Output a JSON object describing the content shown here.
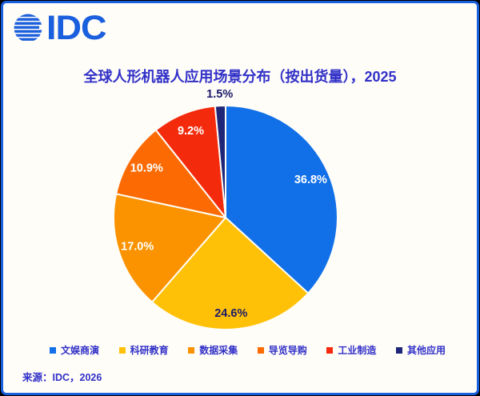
{
  "logo": {
    "text": "IDC",
    "color": "#1A5FDD"
  },
  "header": {
    "title": "全球人形机器人应用场景分布（按出货量），2025"
  },
  "footer": {
    "source": "来源：IDC，2026"
  },
  "theme": {
    "background": "#FFFDF8",
    "border_blue": "#1A5FDD",
    "title_text": "#3130C7",
    "dark_label": "#1B1B6B"
  },
  "chart_data": {
    "type": "pie",
    "title": "全球人形机器人应用场景分布（按出货量），2025",
    "categories": [
      "文娱商演",
      "科研教育",
      "数据采集",
      "导览导购",
      "工业制造",
      "其他应用"
    ],
    "values": [
      36.8,
      24.6,
      17.0,
      10.9,
      9.2,
      1.5
    ],
    "labels": [
      "36.8%",
      "24.6%",
      "17.0%",
      "10.9%",
      "9.2%",
      "1.5%"
    ],
    "colors": [
      "#1170E8",
      "#FFC107",
      "#FB9300",
      "#FB6A03",
      "#F42A0C",
      "#1F2678"
    ],
    "label_colors": [
      "#FFFFFF",
      "#1B1B6B",
      "#FFFFFF",
      "#FFFFFF",
      "#FFFFFF",
      "#1B1B6B"
    ],
    "label_radius": [
      0.83,
      0.86,
      0.83,
      0.83,
      0.83,
      1.1
    ],
    "start_angle_deg": 0,
    "direction": "clockwise",
    "center": [
      282,
      272
    ],
    "radius": 140,
    "slice_stroke": "#FFFDF8",
    "legend_position": "bottom",
    "grid": false
  },
  "legend": {
    "items": [
      {
        "label": "文娱商演",
        "color": "#1170E8"
      },
      {
        "label": "科研教育",
        "color": "#FFC107"
      },
      {
        "label": "数据采集",
        "color": "#FB9300"
      },
      {
        "label": "导览导购",
        "color": "#FB6A03"
      },
      {
        "label": "工业制造",
        "color": "#F42A0C"
      },
      {
        "label": "其他应用",
        "color": "#1F2678"
      }
    ]
  }
}
